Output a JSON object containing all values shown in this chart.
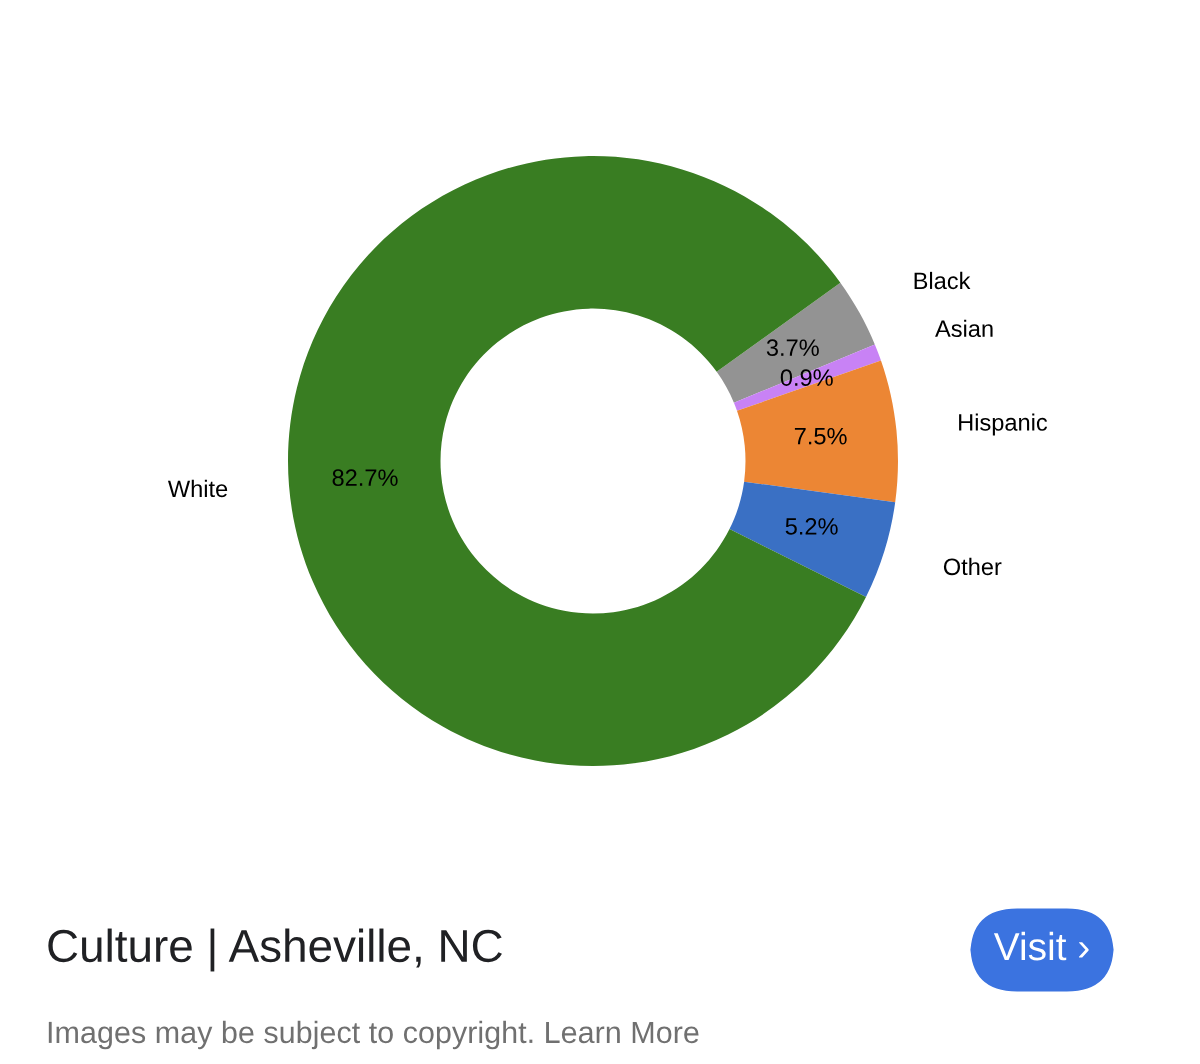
{
  "chart_data": {
    "type": "donut",
    "title": "Culture | Asheville, NC",
    "categories": [
      "Black",
      "Asian",
      "Hispanic",
      "Other",
      "White"
    ],
    "values": [
      3.7,
      0.9,
      7.5,
      5.2,
      82.7
    ],
    "value_labels": [
      "3.7%",
      "0.9%",
      "7.5%",
      "5.2%",
      "82.7%"
    ],
    "colors": [
      "#939393",
      "#c882f5",
      "#ec8634",
      "#3a70c4",
      "#397d22"
    ],
    "legend": false,
    "annotations": [
      "Visit ›",
      "Images may be subject to copyright. Learn More"
    ]
  }
}
